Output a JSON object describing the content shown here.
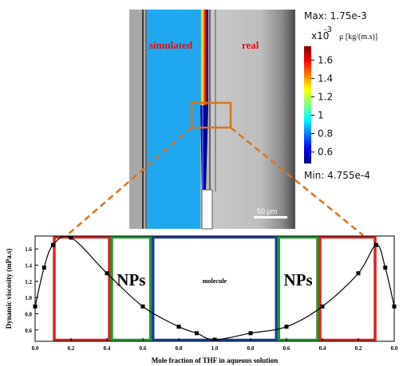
{
  "simulation": {
    "label_simulated": "simulated",
    "label_real": "real",
    "scalebar_label": "50 μm",
    "colorbar": {
      "max_label": "Max: 1.75e-3",
      "multiplier_base": "x10",
      "multiplier_exp": "-3",
      "quantity": "μ [kg/(m.s)]",
      "ticks": [
        "1.6",
        "1.4",
        "1.2",
        "1",
        "0.8",
        "0.6"
      ],
      "tick_values": [
        1.6,
        1.4,
        1.2,
        1.0,
        0.8,
        0.6
      ],
      "range": [
        0.4755,
        1.75
      ],
      "min_label": "Min: 4.755e-4"
    }
  },
  "chart_data": {
    "type": "scatter",
    "xlabel": "Mole fraction of THF in aqueous solution",
    "ylabel": "Dynamic viscosity (mPa.s)",
    "x_tick_labels": [
      "0.0",
      "0.2",
      "0.4",
      "0.6",
      "0.8",
      "1.0",
      "0.8",
      "0.6",
      "0.4",
      "0.2",
      "0.0"
    ],
    "y_ticks": [
      0.6,
      0.8,
      1.0,
      1.2,
      1.4,
      1.6
    ],
    "y_tick_labels": [
      "0.6",
      "0.8",
      "1.0",
      "1.2",
      "1.4",
      "1.6"
    ],
    "xlim": [
      0,
      2
    ],
    "ylim": [
      0.46,
      1.76
    ],
    "points": [
      {
        "x": 0.0,
        "y": 0.89
      },
      {
        "x": 0.05,
        "y": 1.37
      },
      {
        "x": 0.1,
        "y": 1.65
      },
      {
        "x": 0.2,
        "y": 1.74
      },
      {
        "x": 0.4,
        "y": 1.3
      },
      {
        "x": 0.6,
        "y": 0.89
      },
      {
        "x": 0.8,
        "y": 0.64
      },
      {
        "x": 0.9,
        "y": 0.56
      },
      {
        "x": 1.0,
        "y": 0.48
      },
      {
        "x": 1.2,
        "y": 0.56
      },
      {
        "x": 1.4,
        "y": 0.64
      },
      {
        "x": 1.6,
        "y": 0.89
      },
      {
        "x": 1.8,
        "y": 1.3
      },
      {
        "x": 1.9,
        "y": 1.65
      },
      {
        "x": 1.95,
        "y": 1.37
      },
      {
        "x": 2.0,
        "y": 0.89
      }
    ],
    "regions": [
      {
        "label": "",
        "color": "#e02020",
        "x0": 0.1,
        "x1": 0.42
      },
      {
        "label": "NPs",
        "color": "#1e9a2e",
        "x0": 0.42,
        "x1": 0.65
      },
      {
        "label": "molecule",
        "color": "#1a3e9c",
        "x0": 0.65,
        "x1": 1.35
      },
      {
        "label": "NPs",
        "color": "#1e9a2e",
        "x0": 1.35,
        "x1": 1.58
      },
      {
        "label": "",
        "color": "#e02020",
        "x0": 1.58,
        "x1": 1.9
      }
    ]
  },
  "colors": {
    "simulated_fluid": "#1fa8f0",
    "zoom_box": "#d8741c",
    "label_text": "#e01010"
  }
}
